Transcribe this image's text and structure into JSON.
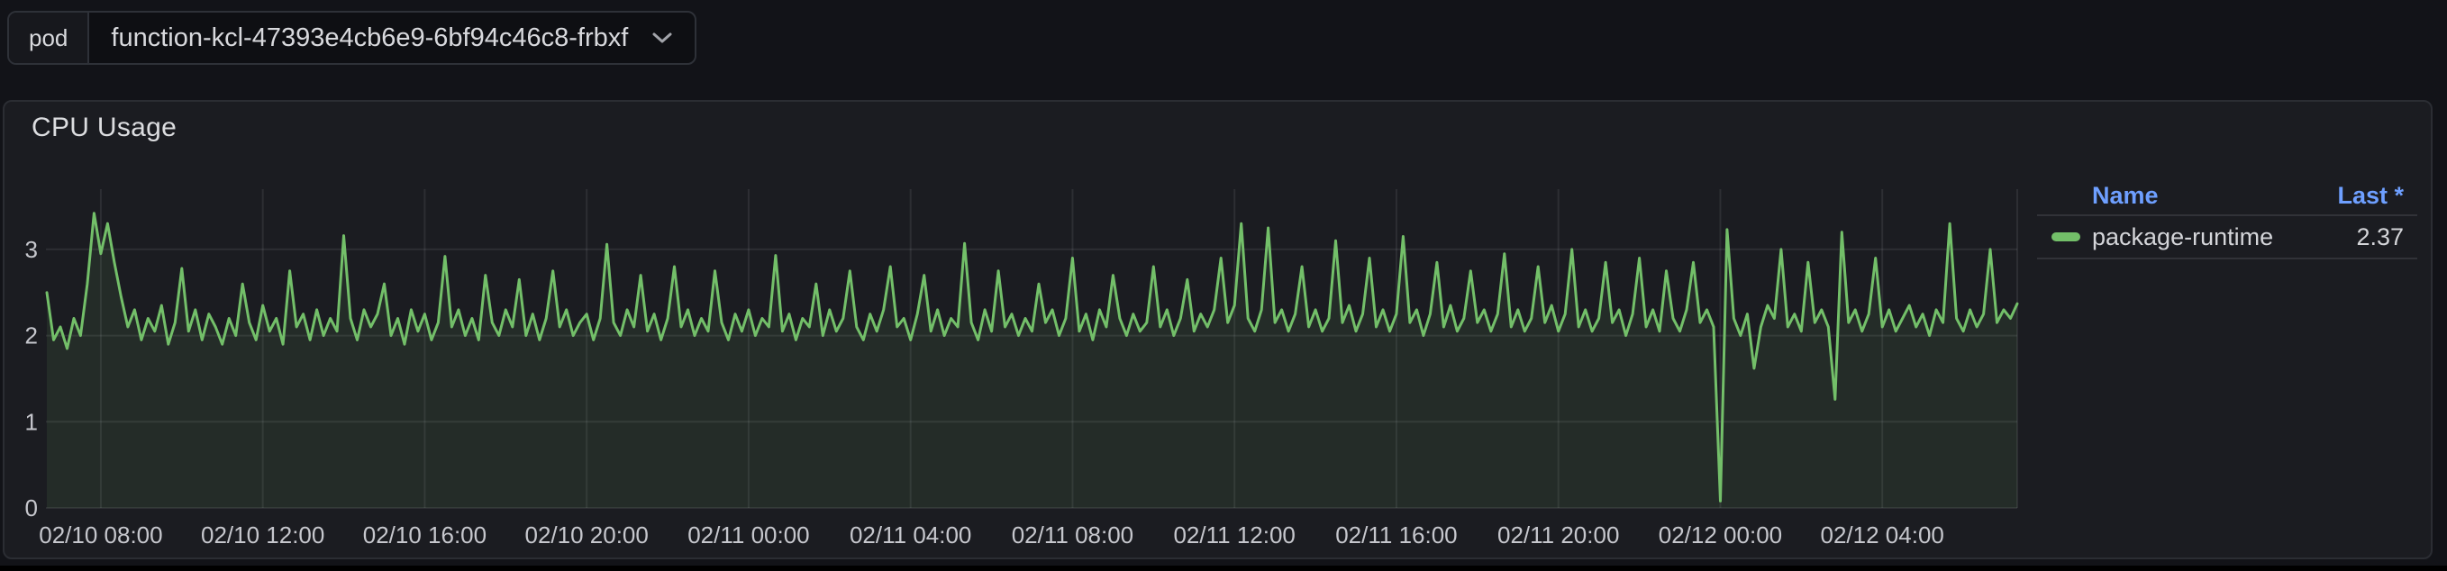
{
  "variable_bar": {
    "label": "pod",
    "value": "function-kcl-47393e4cb6e9-6bf94c46c8-frbxf"
  },
  "panel": {
    "title": "CPU Usage",
    "legend": {
      "name_header": "Name",
      "last_header": "Last *",
      "series": [
        {
          "label": "package-runtime",
          "last": "2.37",
          "color": "#73BF69"
        }
      ]
    }
  },
  "chart_data": {
    "type": "line",
    "title": "CPU Usage",
    "xlabel": "",
    "ylabel": "",
    "grid": true,
    "legend_position": "right",
    "y_ticks": [
      0,
      1,
      2,
      3
    ],
    "ylim": [
      0,
      3.7
    ],
    "x_tick_labels": [
      "02/10 08:00",
      "02/10 12:00",
      "02/10 16:00",
      "02/10 20:00",
      "02/11 00:00",
      "02/11 04:00",
      "02/11 08:00",
      "02/11 12:00",
      "02/11 16:00",
      "02/11 20:00",
      "02/12 00:00",
      "02/12 04:00"
    ],
    "x_start": "02/10 06:40",
    "x_step_minutes": 10,
    "x_tick_first_offset_minutes": 80,
    "x_tick_interval_minutes": 240,
    "series": [
      {
        "name": "package-runtime",
        "color": "#73BF69",
        "last": 2.37,
        "values": [
          2.5,
          1.95,
          2.1,
          1.85,
          2.2,
          2.0,
          2.6,
          3.42,
          2.95,
          3.3,
          2.85,
          2.45,
          2.1,
          2.3,
          1.95,
          2.2,
          2.05,
          2.35,
          1.9,
          2.15,
          2.78,
          2.05,
          2.3,
          1.95,
          2.25,
          2.1,
          1.9,
          2.2,
          2.0,
          2.6,
          2.15,
          1.95,
          2.35,
          2.05,
          2.2,
          1.9,
          2.75,
          2.1,
          2.25,
          1.95,
          2.3,
          2.0,
          2.2,
          2.05,
          3.16,
          2.2,
          1.95,
          2.3,
          2.1,
          2.25,
          2.6,
          2.0,
          2.2,
          1.9,
          2.3,
          2.05,
          2.25,
          1.95,
          2.15,
          2.92,
          2.1,
          2.3,
          2.0,
          2.2,
          1.95,
          2.7,
          2.15,
          2.0,
          2.3,
          2.1,
          2.65,
          2.0,
          2.25,
          1.95,
          2.2,
          2.75,
          2.1,
          2.3,
          2.0,
          2.15,
          2.25,
          1.95,
          2.2,
          3.06,
          2.15,
          2.0,
          2.3,
          2.1,
          2.7,
          2.05,
          2.25,
          1.95,
          2.2,
          2.8,
          2.1,
          2.3,
          2.0,
          2.2,
          2.05,
          2.75,
          2.15,
          1.95,
          2.25,
          2.05,
          2.3,
          2.0,
          2.2,
          2.1,
          2.93,
          2.05,
          2.25,
          1.95,
          2.2,
          2.1,
          2.6,
          2.0,
          2.3,
          2.05,
          2.2,
          2.75,
          2.1,
          1.95,
          2.25,
          2.05,
          2.3,
          2.8,
          2.1,
          2.2,
          1.95,
          2.25,
          2.7,
          2.05,
          2.3,
          2.0,
          2.2,
          2.1,
          3.07,
          2.15,
          1.95,
          2.3,
          2.05,
          2.75,
          2.1,
          2.25,
          2.0,
          2.2,
          2.05,
          2.6,
          2.15,
          2.3,
          2.0,
          2.2,
          2.9,
          2.05,
          2.25,
          1.95,
          2.3,
          2.1,
          2.7,
          2.2,
          2.0,
          2.25,
          2.05,
          2.15,
          2.8,
          2.1,
          2.3,
          2.0,
          2.2,
          2.65,
          2.05,
          2.25,
          2.1,
          2.3,
          2.9,
          2.15,
          2.35,
          3.3,
          2.2,
          2.05,
          2.3,
          3.25,
          2.15,
          2.3,
          2.05,
          2.25,
          2.8,
          2.1,
          2.3,
          2.05,
          2.2,
          3.1,
          2.15,
          2.35,
          2.05,
          2.25,
          2.9,
          2.1,
          2.3,
          2.05,
          2.25,
          3.15,
          2.15,
          2.3,
          2.0,
          2.25,
          2.85,
          2.1,
          2.35,
          2.05,
          2.2,
          2.75,
          2.15,
          2.3,
          2.05,
          2.25,
          2.95,
          2.1,
          2.3,
          2.05,
          2.2,
          2.8,
          2.15,
          2.35,
          2.05,
          2.25,
          3.0,
          2.1,
          2.3,
          2.05,
          2.2,
          2.85,
          2.15,
          2.3,
          2.0,
          2.25,
          2.9,
          2.1,
          2.3,
          2.05,
          2.75,
          2.2,
          2.05,
          2.3,
          2.85,
          2.15,
          2.3,
          2.1,
          0.08,
          3.23,
          2.2,
          2.0,
          2.25,
          1.62,
          2.1,
          2.35,
          2.2,
          3.0,
          2.1,
          2.25,
          2.05,
          2.85,
          2.15,
          2.3,
          2.1,
          1.26,
          3.2,
          2.15,
          2.3,
          2.05,
          2.25,
          2.9,
          2.1,
          2.3,
          2.05,
          2.2,
          2.35,
          2.1,
          2.25,
          2.0,
          2.3,
          2.15,
          3.3,
          2.2,
          2.05,
          2.3,
          2.1,
          2.25,
          3.0,
          2.15,
          2.3,
          2.2,
          2.37
        ]
      }
    ]
  },
  "colors": {
    "series_green": "#73BF69",
    "legend_header_blue": "#6E9FFF",
    "panel_bg": "#1B1C21",
    "page_bg": "#121318",
    "grid": "rgba(204,204,220,0.10)"
  }
}
